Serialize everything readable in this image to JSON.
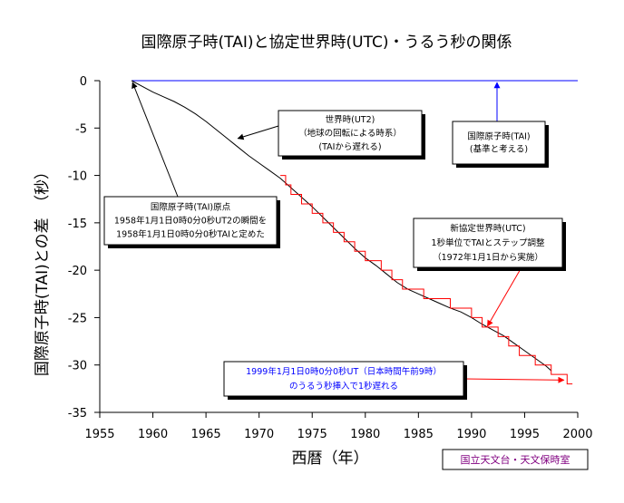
{
  "chart_data": {
    "type": "line",
    "title": "国際原子時(TAI)と協定世界時(UTC)・うるう秒の関係",
    "xlabel": "西暦（年）",
    "ylabel": "国際原子時(TAI)との差　（秒）",
    "xlim": [
      1955,
      2000
    ],
    "ylim": [
      -35,
      0
    ],
    "xticks": [
      "1955",
      "1960",
      "1965",
      "1970",
      "1975",
      "1980",
      "1985",
      "1990",
      "1995",
      "2000"
    ],
    "yticks": [
      "0",
      "-5",
      "-10",
      "-15",
      "-20",
      "-25",
      "-30",
      "-35"
    ],
    "grid": false,
    "series": [
      {
        "label": "TAI",
        "color": "#0000ff",
        "style": "horizontal line",
        "x": [
          1958,
          2000
        ],
        "y": [
          0,
          0
        ]
      },
      {
        "label": "UT2",
        "color": "#000000",
        "style": "curve",
        "x": [
          1958,
          1959,
          1960,
          1961,
          1962,
          1963,
          1964,
          1965,
          1966,
          1967,
          1968,
          1969,
          1970,
          1971,
          1972,
          1973,
          1974,
          1975,
          1976,
          1977,
          1978,
          1979,
          1980,
          1981,
          1982,
          1983,
          1984,
          1985,
          1986,
          1987,
          1988,
          1989,
          1990,
          1991,
          1992,
          1993,
          1994,
          1995,
          1996,
          1997,
          1997.5
        ],
        "y": [
          0,
          -0.6,
          -1.2,
          -1.7,
          -2.2,
          -2.8,
          -3.5,
          -4.3,
          -5.2,
          -6.1,
          -7,
          -7.9,
          -8.7,
          -9.5,
          -10.3,
          -11.3,
          -12.3,
          -13.3,
          -14.4,
          -15.5,
          -16.6,
          -17.7,
          -18.7,
          -19.5,
          -20.4,
          -21.3,
          -22,
          -22.5,
          -23,
          -23.5,
          -24,
          -24.4,
          -25,
          -25.7,
          -26.3,
          -26.9,
          -27.7,
          -28.5,
          -29.3,
          -30.1,
          -30.6
        ]
      },
      {
        "label": "UTC",
        "color": "#ff0000",
        "style": "step",
        "x": [
          1972,
          1972.5,
          1973,
          1974,
          1975,
          1976,
          1977,
          1978,
          1979,
          1980,
          1981.5,
          1982.5,
          1983.5,
          1985.5,
          1988,
          1990,
          1991,
          1992.5,
          1993.5,
          1994.5,
          1996,
          1997.5,
          1999
        ],
        "y": [
          -10,
          -11,
          -12,
          -13,
          -14,
          -15,
          -16,
          -17,
          -18,
          -19,
          -20,
          -21,
          -22,
          -23,
          -24,
          -25,
          -26,
          -27,
          -28,
          -29,
          -30,
          -31,
          -32
        ],
        "end_x": 1999.5
      }
    ],
    "annotations": [
      {
        "id": "ut2",
        "lines": [
          "世界時(UT2)",
          "（地球の回転による時系）",
          "(TAIから遅れる)"
        ]
      },
      {
        "id": "tai",
        "lines": [
          "国際原子時(TAI)",
          "(基準と考える)"
        ]
      },
      {
        "id": "origin",
        "lines": [
          "国際原子時(TAI)原点",
          "1958年1月1日0時0分0秒UT2の瞬間を",
          "1958年1月1日0時0分0秒TAIと定めた"
        ]
      },
      {
        "id": "utc",
        "lines": [
          "新協定世界時(UTC)",
          "1秒単位でTAIとステップ調整",
          "（1972年1月1日から実施）"
        ]
      },
      {
        "id": "leap",
        "color": "#0000ff",
        "lines": [
          "1999年1月1日0時0分0秒UT（日本時間午前9時）",
          "のうるう秒挿入で1秒遅れる"
        ]
      }
    ],
    "credit": "国立天文台・天文保時室",
    "credit_color": "#800080"
  }
}
